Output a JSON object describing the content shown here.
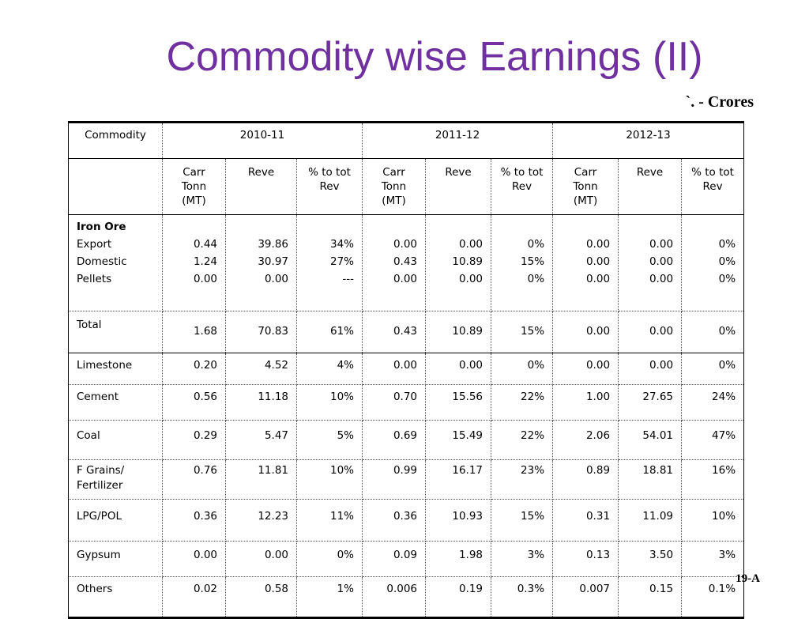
{
  "title": "Commodity wise Earnings (II)",
  "units": "`. - Crores",
  "slide_number": "19-A",
  "header": {
    "commodity": "Commodity",
    "years": [
      "2010-11",
      "2011-12",
      "2012-13"
    ]
  },
  "subheader": {
    "carr_tonn": [
      "Carr",
      "Tonn",
      "(MT)"
    ],
    "reve": "Reve",
    "pct_tot_rev": [
      "% to tot",
      "Rev"
    ]
  },
  "iron_ore": {
    "label": "Iron Ore",
    "rows": [
      {
        "name": "Export",
        "values": [
          "0.44",
          "39.86",
          "34%",
          "0.00",
          "0.00",
          "0%",
          "0.00",
          "0.00",
          "0%"
        ]
      },
      {
        "name": "Domestic",
        "values": [
          "1.24",
          "30.97",
          "27%",
          "0.43",
          "10.89",
          "15%",
          "0.00",
          "0.00",
          "0%"
        ]
      },
      {
        "name": "Pellets",
        "values": [
          "0.00",
          "0.00",
          "---",
          "0.00",
          "0.00",
          "0%",
          "0.00",
          "0.00",
          "0%"
        ]
      }
    ]
  },
  "total": {
    "name": "Total",
    "values": [
      "1.68",
      "70.83",
      "61%",
      "0.43",
      "10.89",
      "15%",
      "0.00",
      "0.00",
      "0%"
    ]
  },
  "rows": [
    {
      "name": "Limestone",
      "values": [
        "0.20",
        "4.52",
        "4%",
        "0.00",
        "0.00",
        "0%",
        "0.00",
        "0.00",
        "0%"
      ]
    },
    {
      "name": "Cement",
      "values": [
        "0.56",
        "11.18",
        "10%",
        "0.70",
        "15.56",
        "22%",
        "1.00",
        "27.65",
        "24%"
      ]
    },
    {
      "name": "Coal",
      "values": [
        "0.29",
        "5.47",
        "5%",
        "0.69",
        "15.49",
        "22%",
        "2.06",
        "54.01",
        "47%"
      ]
    },
    {
      "name": [
        "F Grains/",
        "Fertilizer"
      ],
      "values": [
        "0.76",
        "11.81",
        "10%",
        "0.99",
        "16.17",
        "23%",
        "0.89",
        "18.81",
        "16%"
      ]
    },
    {
      "name": "LPG/POL",
      "values": [
        "0.36",
        "12.23",
        "11%",
        "0.36",
        "10.93",
        "15%",
        "0.31",
        "11.09",
        "10%"
      ]
    },
    {
      "name": "Gypsum",
      "values": [
        "0.00",
        "0.00",
        "0%",
        "0.09",
        "1.98",
        "3%",
        "0.13",
        "3.50",
        "3%"
      ]
    },
    {
      "name": "Others",
      "values": [
        "0.02",
        "0.58",
        "1%",
        "0.006",
        "0.19",
        "0.3%",
        "0.007",
        "0.15",
        "0.1%"
      ]
    }
  ]
}
